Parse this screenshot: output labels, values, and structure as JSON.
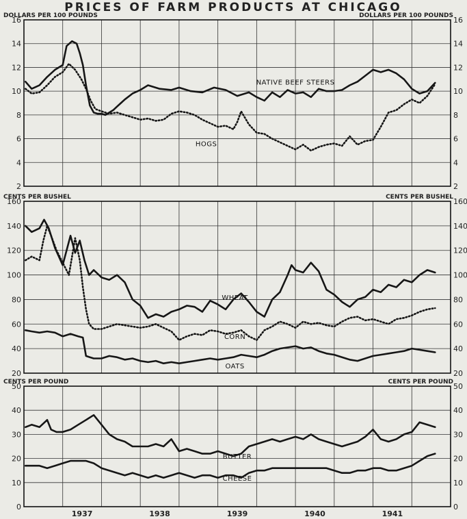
{
  "title": "PRICES OF FARM PRODUCTS AT CHICAGO",
  "colors": {
    "ink": "#161616",
    "paper": "#ebebe6"
  },
  "x_axis": {
    "years": [
      "1937",
      "1938",
      "1939",
      "1940",
      "1941"
    ]
  },
  "chart_data": [
    {
      "type": "line",
      "unit_left": "DOLLARS PER 100 POUNDS",
      "unit_right": "DOLLARS PER 100 POUNDS",
      "ylim": [
        2,
        16
      ],
      "yticks": [
        "2",
        "4",
        "6",
        "8",
        "10",
        "12",
        "14",
        "16"
      ],
      "xlim": [
        1936.0,
        1941.5
      ],
      "grid": true,
      "series": [
        {
          "name": "NATIVE BEEF STEERS",
          "dash": "solid",
          "x": [
            1936.02,
            1936.1,
            1936.2,
            1936.3,
            1936.4,
            1936.5,
            1936.55,
            1936.62,
            1936.68,
            1936.72,
            1936.76,
            1936.8,
            1936.85,
            1936.9,
            1936.95,
            1937.0,
            1937.05,
            1937.1,
            1937.15,
            1937.2,
            1937.25,
            1937.3,
            1937.4,
            1937.5,
            1937.6,
            1937.75,
            1937.9,
            1938.0,
            1938.15,
            1938.3,
            1938.45,
            1938.6,
            1938.75,
            1938.9,
            1939.0,
            1939.1,
            1939.2,
            1939.3,
            1939.4,
            1939.5,
            1939.6,
            1939.7,
            1939.8,
            1939.9,
            1940.0,
            1940.1,
            1940.2,
            1940.3,
            1940.4,
            1940.5,
            1940.6,
            1940.7,
            1940.8,
            1940.9,
            1941.0,
            1941.1,
            1941.2,
            1941.3
          ],
          "values": [
            10.8,
            10.2,
            10.5,
            11.2,
            11.8,
            12.2,
            13.8,
            14.2,
            14.0,
            13.2,
            12.2,
            10.5,
            8.8,
            8.2,
            8.1,
            8.1,
            8.0,
            8.2,
            8.4,
            8.7,
            9.0,
            9.3,
            9.8,
            10.1,
            10.5,
            10.2,
            10.1,
            10.3,
            10.0,
            9.9,
            10.3,
            10.1,
            9.6,
            9.9,
            9.5,
            9.2,
            9.9,
            9.5,
            10.1,
            9.8,
            9.9,
            9.5,
            10.2,
            10.0,
            10.0,
            10.1,
            10.5,
            10.8,
            11.3,
            11.8,
            11.6,
            11.8,
            11.5,
            11.0,
            10.2,
            9.8,
            10.0,
            10.7
          ]
        },
        {
          "name": "HOGS",
          "dash": "dotted",
          "x": [
            1936.02,
            1936.1,
            1936.2,
            1936.3,
            1936.4,
            1936.5,
            1936.58,
            1936.66,
            1936.74,
            1936.8,
            1936.86,
            1936.92,
            1937.0,
            1937.1,
            1937.2,
            1937.3,
            1937.4,
            1937.5,
            1937.6,
            1937.7,
            1937.8,
            1937.9,
            1938.0,
            1938.1,
            1938.2,
            1938.3,
            1938.4,
            1938.5,
            1938.6,
            1938.7,
            1938.75,
            1938.8,
            1938.9,
            1939.0,
            1939.1,
            1939.2,
            1939.3,
            1939.4,
            1939.5,
            1939.6,
            1939.7,
            1939.8,
            1939.9,
            1940.0,
            1940.1,
            1940.2,
            1940.3,
            1940.4,
            1940.5,
            1940.6,
            1940.7,
            1940.8,
            1940.9,
            1941.0,
            1941.1,
            1941.2,
            1941.3
          ],
          "values": [
            10.2,
            9.8,
            9.9,
            10.5,
            11.2,
            11.6,
            12.3,
            11.8,
            11.0,
            10.2,
            9.2,
            8.5,
            8.3,
            8.1,
            8.2,
            8.0,
            7.8,
            7.6,
            7.7,
            7.5,
            7.6,
            8.1,
            8.3,
            8.2,
            8.0,
            7.6,
            7.3,
            7.0,
            7.1,
            6.8,
            7.4,
            8.3,
            7.2,
            6.5,
            6.4,
            6.0,
            5.7,
            5.4,
            5.1,
            5.5,
            5.0,
            5.3,
            5.5,
            5.6,
            5.4,
            6.2,
            5.5,
            5.8,
            5.9,
            7.0,
            8.2,
            8.4,
            8.9,
            9.3,
            9.0,
            9.6,
            10.6
          ]
        }
      ],
      "annotations": [
        {
          "text": "NATIVE BEEF STEERS",
          "x": 1939.5,
          "y": 10.8
        },
        {
          "text": "HOGS",
          "x": 1938.35,
          "y": 5.6
        }
      ]
    },
    {
      "type": "line",
      "unit_left": "CENTS PER BUSHEL",
      "unit_right": "CENTS PER BUSHEL",
      "ylim": [
        20,
        160
      ],
      "yticks": [
        "20",
        "40",
        "60",
        "80",
        "100",
        "120",
        "140",
        "160"
      ],
      "xlim": [
        1936.0,
        1941.5
      ],
      "grid": true,
      "series": [
        {
          "name": "WHEAT",
          "dash": "solid",
          "x": [
            1936.02,
            1936.1,
            1936.2,
            1936.26,
            1936.32,
            1936.4,
            1936.5,
            1936.6,
            1936.66,
            1936.72,
            1936.78,
            1936.84,
            1936.9,
            1937.0,
            1937.1,
            1937.2,
            1937.3,
            1937.4,
            1937.5,
            1937.6,
            1937.7,
            1937.8,
            1937.9,
            1938.0,
            1938.1,
            1938.2,
            1938.3,
            1938.4,
            1938.5,
            1938.6,
            1938.7,
            1938.8,
            1938.9,
            1939.0,
            1939.1,
            1939.2,
            1939.3,
            1939.4,
            1939.45,
            1939.5,
            1939.6,
            1939.7,
            1939.8,
            1939.9,
            1940.0,
            1940.1,
            1940.2,
            1940.3,
            1940.4,
            1940.5,
            1940.6,
            1940.7,
            1940.8,
            1940.9,
            1941.0,
            1941.1,
            1941.2,
            1941.3
          ],
          "values": [
            140,
            135,
            138,
            145,
            138,
            122,
            108,
            132,
            118,
            128,
            112,
            100,
            104,
            98,
            96,
            100,
            94,
            80,
            75,
            65,
            68,
            66,
            70,
            72,
            75,
            74,
            70,
            79,
            76,
            72,
            80,
            85,
            78,
            70,
            66,
            80,
            86,
            100,
            108,
            104,
            102,
            110,
            103,
            88,
            84,
            78,
            74,
            80,
            82,
            88,
            86,
            92,
            90,
            96,
            94,
            100,
            104,
            102
          ]
        },
        {
          "name": "CORN",
          "dash": "dotted",
          "x": [
            1936.02,
            1936.1,
            1936.2,
            1936.25,
            1936.3,
            1936.35,
            1936.42,
            1936.5,
            1936.58,
            1936.66,
            1936.72,
            1936.76,
            1936.8,
            1936.84,
            1936.9,
            1937.0,
            1937.1,
            1937.2,
            1937.3,
            1937.4,
            1937.5,
            1937.6,
            1937.7,
            1937.8,
            1937.9,
            1938.0,
            1938.1,
            1938.2,
            1938.3,
            1938.4,
            1938.5,
            1938.6,
            1938.7,
            1938.8,
            1938.9,
            1939.0,
            1939.1,
            1939.2,
            1939.3,
            1939.4,
            1939.5,
            1939.6,
            1939.7,
            1939.8,
            1939.9,
            1940.0,
            1940.1,
            1940.2,
            1940.3,
            1940.4,
            1940.5,
            1940.6,
            1940.7,
            1940.8,
            1940.9,
            1941.0,
            1941.1,
            1941.2,
            1941.3
          ],
          "values": [
            112,
            115,
            112,
            128,
            140,
            132,
            120,
            110,
            100,
            130,
            112,
            90,
            72,
            60,
            56,
            56,
            58,
            60,
            59,
            58,
            57,
            58,
            60,
            57,
            54,
            47,
            50,
            52,
            51,
            55,
            54,
            52,
            53,
            55,
            50,
            47,
            55,
            58,
            62,
            60,
            57,
            62,
            60,
            61,
            59,
            58,
            62,
            65,
            66,
            63,
            64,
            62,
            60,
            64,
            65,
            67,
            70,
            72,
            73
          ]
        },
        {
          "name": "OATS",
          "dash": "solid",
          "x": [
            1936.02,
            1936.1,
            1936.2,
            1936.3,
            1936.4,
            1936.5,
            1936.6,
            1936.7,
            1936.76,
            1936.8,
            1936.85,
            1936.9,
            1937.0,
            1937.1,
            1937.2,
            1937.3,
            1937.4,
            1937.5,
            1937.6,
            1937.7,
            1937.8,
            1937.9,
            1938.0,
            1938.1,
            1938.2,
            1938.3,
            1938.4,
            1938.5,
            1938.6,
            1938.7,
            1938.8,
            1938.9,
            1939.0,
            1939.1,
            1939.2,
            1939.3,
            1939.4,
            1939.5,
            1939.6,
            1939.7,
            1939.8,
            1939.9,
            1940.0,
            1940.1,
            1940.2,
            1940.3,
            1940.4,
            1940.5,
            1940.6,
            1940.7,
            1940.8,
            1940.9,
            1941.0,
            1941.1,
            1941.2,
            1941.3
          ],
          "values": [
            55,
            54,
            53,
            54,
            53,
            50,
            52,
            50,
            49,
            34,
            33,
            32,
            32,
            34,
            33,
            31,
            32,
            30,
            29,
            30,
            28,
            29,
            28,
            29,
            30,
            31,
            32,
            31,
            32,
            33,
            35,
            34,
            33,
            35,
            38,
            40,
            41,
            42,
            40,
            41,
            38,
            36,
            35,
            33,
            31,
            30,
            32,
            34,
            35,
            36,
            37,
            38,
            40,
            39,
            38,
            37
          ]
        }
      ],
      "annotations": [
        {
          "text": "WHEAT",
          "x": 1938.72,
          "y": 82
        },
        {
          "text": "CORN",
          "x": 1938.72,
          "y": 50
        },
        {
          "text": "OATS",
          "x": 1938.72,
          "y": 26
        }
      ]
    },
    {
      "type": "line",
      "unit_left": "CENTS PER POUND",
      "unit_right": "CENTS PER POUND",
      "ylim": [
        0,
        50
      ],
      "yticks": [
        "0",
        "10",
        "20",
        "30",
        "40",
        "50"
      ],
      "xlim": [
        1936.0,
        1941.5
      ],
      "grid": true,
      "series": [
        {
          "name": "BUTTER",
          "dash": "solid",
          "x": [
            1936.02,
            1936.1,
            1936.2,
            1936.3,
            1936.35,
            1936.42,
            1936.5,
            1936.6,
            1936.7,
            1936.8,
            1936.9,
            1937.0,
            1937.1,
            1937.2,
            1937.3,
            1937.4,
            1937.5,
            1937.6,
            1937.7,
            1937.8,
            1937.9,
            1938.0,
            1938.1,
            1938.2,
            1938.3,
            1938.4,
            1938.5,
            1938.6,
            1938.7,
            1938.8,
            1938.9,
            1939.0,
            1939.1,
            1939.2,
            1939.3,
            1939.4,
            1939.5,
            1939.6,
            1939.7,
            1939.8,
            1939.9,
            1940.0,
            1940.1,
            1940.2,
            1940.3,
            1940.4,
            1940.5,
            1940.6,
            1940.7,
            1940.8,
            1940.9,
            1941.0,
            1941.1,
            1941.2,
            1941.3
          ],
          "values": [
            33,
            34,
            33,
            36,
            32,
            31,
            31,
            32,
            34,
            36,
            38,
            34,
            30,
            28,
            27,
            25,
            25,
            25,
            26,
            25,
            28,
            23,
            24,
            23,
            22,
            22,
            23,
            22,
            21,
            22,
            25,
            26,
            27,
            28,
            27,
            28,
            29,
            28,
            30,
            28,
            27,
            26,
            25,
            26,
            27,
            29,
            32,
            28,
            27,
            28,
            30,
            31,
            35,
            34,
            33
          ]
        },
        {
          "name": "CHEESE",
          "dash": "solid",
          "x": [
            1936.02,
            1936.1,
            1936.2,
            1936.3,
            1936.4,
            1936.5,
            1936.6,
            1936.7,
            1936.8,
            1936.9,
            1937.0,
            1937.1,
            1937.2,
            1937.3,
            1937.4,
            1937.5,
            1937.6,
            1937.7,
            1937.8,
            1937.9,
            1938.0,
            1938.1,
            1938.2,
            1938.3,
            1938.4,
            1938.5,
            1938.6,
            1938.7,
            1938.8,
            1938.9,
            1939.0,
            1939.1,
            1939.2,
            1939.3,
            1939.4,
            1939.5,
            1939.6,
            1939.7,
            1939.8,
            1939.9,
            1940.0,
            1940.1,
            1940.2,
            1940.3,
            1940.4,
            1940.5,
            1940.6,
            1940.7,
            1940.8,
            1940.9,
            1941.0,
            1941.1,
            1941.2,
            1941.3
          ],
          "values": [
            17,
            17,
            17,
            16,
            17,
            18,
            19,
            19,
            19,
            18,
            16,
            15,
            14,
            13,
            14,
            13,
            12,
            13,
            12,
            13,
            14,
            13,
            12,
            13,
            13,
            12,
            13,
            13,
            12,
            14,
            15,
            15,
            16,
            16,
            16,
            16,
            16,
            16,
            16,
            16,
            15,
            14,
            14,
            15,
            15,
            16,
            16,
            15,
            15,
            16,
            17,
            19,
            21,
            22
          ]
        }
      ],
      "annotations": [
        {
          "text": "BUTTER",
          "x": 1938.75,
          "y": 21
        },
        {
          "text": "CHEESE",
          "x": 1938.75,
          "y": 12
        }
      ]
    }
  ]
}
